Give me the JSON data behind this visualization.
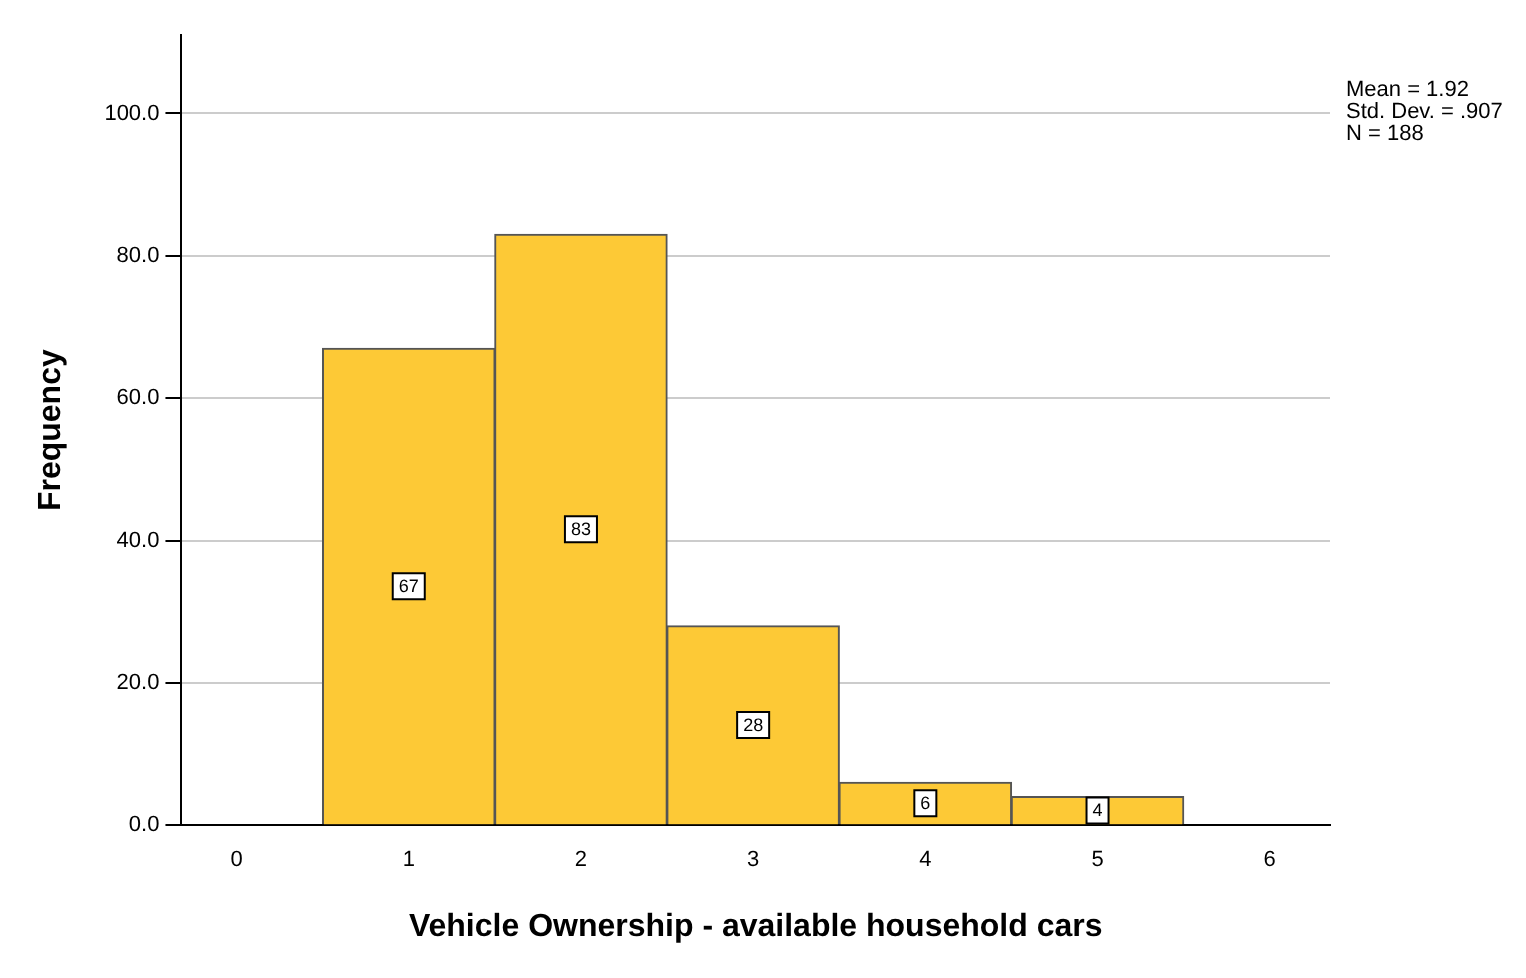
{
  "chart_data": {
    "type": "histogram",
    "xlabel": "Vehicle Ownership - available household cars",
    "ylabel": "Frequency",
    "bins": [
      0.5,
      1.5,
      2.5,
      3.5,
      4.5,
      5.5
    ],
    "values": [
      67,
      83,
      28,
      6,
      4
    ],
    "color": "#fdc936",
    "data_labels": true,
    "xlim": [
      -0.32,
      6.35
    ],
    "xticks": [
      0,
      1,
      2,
      3,
      4,
      5,
      6
    ],
    "ylim": [
      0,
      111
    ],
    "yticks": [
      {
        "value": 0,
        "label": "0.0"
      },
      {
        "value": 20,
        "label": "20.0"
      },
      {
        "value": 40,
        "label": "40.0"
      },
      {
        "value": 60,
        "label": "60.0"
      },
      {
        "value": 80,
        "label": "80.0"
      },
      {
        "value": 100,
        "label": "100.0"
      }
    ],
    "grid": "y",
    "legend": false,
    "annotations": [
      "Mean = 1.92",
      "Std. Dev. = .907",
      "N = 188"
    ]
  }
}
